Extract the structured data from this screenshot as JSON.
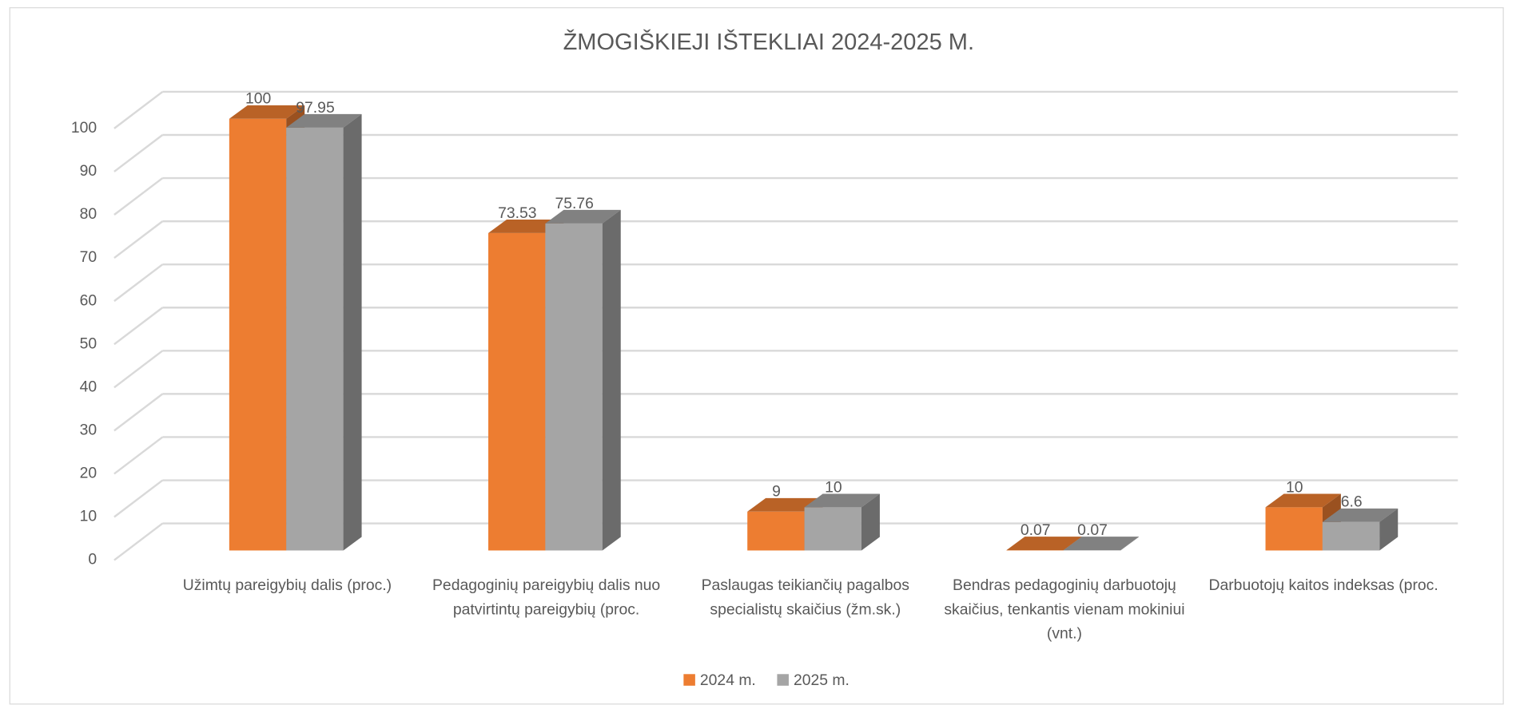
{
  "chart_data": {
    "type": "bar3d",
    "title": "ŽMOGIŠKIEJI IŠTEKLIAI 2024-2025 M.",
    "categories": [
      "Užimtų pareigybių dalis (proc.)",
      "Pedagoginių pareigybių dalis nuo patvirtintų pareigybių (proc.",
      "Paslaugas teikiančių pagalbos specialistų skaičius (žm.sk.)",
      "Bendras pedagoginių darbuotojų skaičius, tenkantis vienam mokiniui (vnt.)",
      "Darbuotojų kaitos indeksas (proc."
    ],
    "series": [
      {
        "name": "2024 m.",
        "color": "#ED7D31",
        "values": [
          100,
          73.53,
          9,
          0.07,
          10
        ]
      },
      {
        "name": "2025 m.",
        "color": "#A5A5A5",
        "values": [
          97.95,
          75.76,
          10,
          0.07,
          6.6
        ]
      }
    ],
    "ylim": [
      0,
      100
    ],
    "yticks": [
      0,
      10,
      20,
      30,
      40,
      50,
      60,
      70,
      80,
      90,
      100
    ],
    "grid": true,
    "legend": "bottom"
  }
}
